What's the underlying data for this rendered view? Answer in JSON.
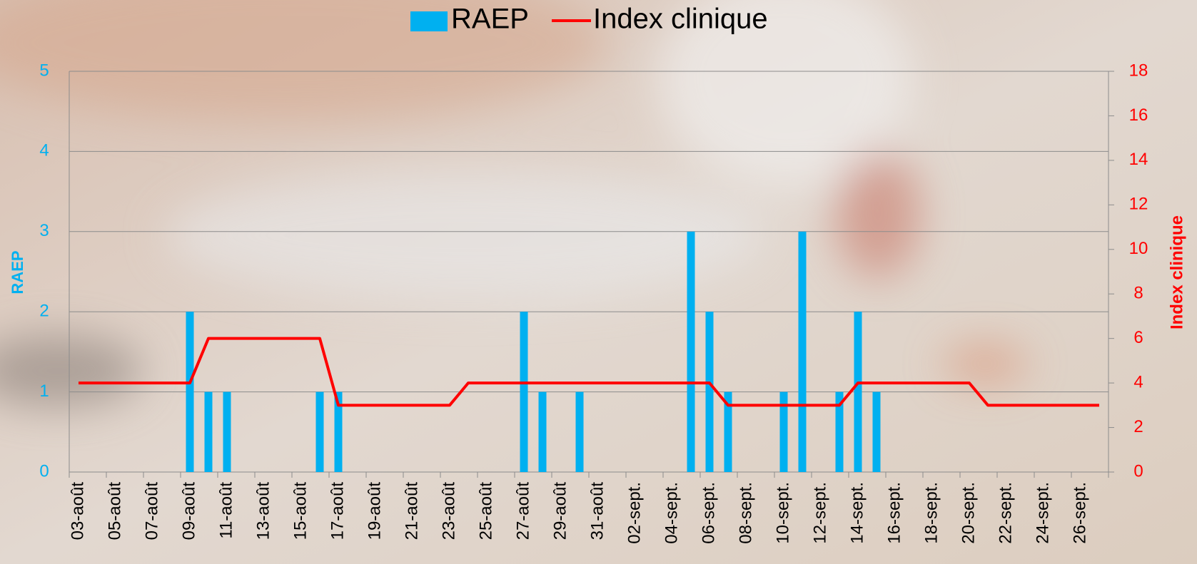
{
  "chart_data": {
    "type": "bar",
    "categories": [
      "03-août",
      null,
      "05-août",
      null,
      "07-août",
      null,
      "09-août",
      null,
      "11-août",
      null,
      "13-août",
      null,
      "15-août",
      null,
      "17-août",
      null,
      "19-août",
      null,
      "21-août",
      null,
      "23-août",
      null,
      "25-août",
      null,
      "27-août",
      null,
      "29-août",
      null,
      "31-août",
      null,
      "02-sept.",
      null,
      "04-sept.",
      null,
      "06-sept.",
      null,
      "08-sept.",
      null,
      "10-sept.",
      null,
      "12-sept.",
      null,
      "14-sept.",
      null,
      "16-sept.",
      null,
      "18-sept.",
      null,
      "20-sept.",
      null,
      "22-sept.",
      null,
      "24-sept.",
      null,
      "26-sept.",
      null
    ],
    "series": [
      {
        "name": "RAEP",
        "type": "bar",
        "color": "#00b0f0",
        "values": [
          null,
          null,
          null,
          null,
          null,
          null,
          2,
          1,
          1,
          null,
          null,
          null,
          null,
          1,
          1,
          null,
          null,
          null,
          null,
          null,
          null,
          null,
          null,
          null,
          2,
          1,
          null,
          1,
          null,
          null,
          null,
          null,
          null,
          3,
          2,
          1,
          null,
          null,
          1,
          3,
          null,
          1,
          2,
          1,
          null,
          null,
          null,
          null,
          null,
          null,
          null,
          null,
          null,
          null,
          null,
          null
        ]
      },
      {
        "name": "Index clinique",
        "type": "line",
        "color": "#ff0000",
        "axis": "y2",
        "values": [
          4,
          4,
          4,
          4,
          4,
          4,
          4,
          6,
          6,
          6,
          6,
          6,
          6,
          6,
          3,
          3,
          3,
          3,
          3,
          3,
          3,
          4,
          4,
          4,
          4,
          4,
          4,
          4,
          4,
          4,
          4,
          4,
          4,
          4,
          4,
          3,
          3,
          3,
          3,
          3,
          3,
          3,
          4,
          4,
          4,
          4,
          4,
          4,
          4,
          3,
          3,
          3,
          3,
          3,
          3,
          3
        ]
      }
    ],
    "y_label": "RAEP",
    "y2_label": "Index clinique",
    "ylim": [
      0,
      5
    ],
    "yticks": [
      0,
      1,
      2,
      3,
      4,
      5
    ],
    "y2lim": [
      0,
      18
    ],
    "y2ticks": [
      0,
      2,
      4,
      6,
      8,
      10,
      12,
      14,
      16,
      18
    ],
    "grid": true,
    "legend": "top"
  }
}
